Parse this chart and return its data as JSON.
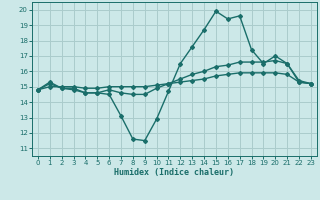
{
  "xlabel": "Humidex (Indice chaleur)",
  "xlim": [
    -0.5,
    23.5
  ],
  "ylim": [
    10.5,
    20.5
  ],
  "yticks": [
    11,
    12,
    13,
    14,
    15,
    16,
    17,
    18,
    19,
    20
  ],
  "xticks": [
    0,
    1,
    2,
    3,
    4,
    5,
    6,
    7,
    8,
    9,
    10,
    11,
    12,
    13,
    14,
    15,
    16,
    17,
    18,
    19,
    20,
    21,
    22,
    23
  ],
  "bg_color": "#cce8e8",
  "grid_color": "#aacccc",
  "line_color": "#1a6e6a",
  "line1_x": [
    0,
    1,
    2,
    3,
    4,
    5,
    6,
    7,
    8,
    9,
    10,
    11,
    12,
    13,
    14,
    15,
    16,
    17,
    18,
    19,
    20,
    21,
    22,
    23
  ],
  "line1_y": [
    14.8,
    15.3,
    14.9,
    14.9,
    14.6,
    14.6,
    14.5,
    13.1,
    11.6,
    11.5,
    12.9,
    14.7,
    16.5,
    17.6,
    18.7,
    19.9,
    19.4,
    19.6,
    17.4,
    16.5,
    17.0,
    16.5,
    15.4,
    15.2
  ],
  "line2_x": [
    0,
    1,
    2,
    3,
    4,
    5,
    6,
    7,
    8,
    9,
    10,
    11,
    12,
    13,
    14,
    15,
    16,
    17,
    18,
    19,
    20,
    21,
    22,
    23
  ],
  "line2_y": [
    14.8,
    15.2,
    14.9,
    14.8,
    14.6,
    14.6,
    14.8,
    14.6,
    14.5,
    14.5,
    14.9,
    15.2,
    15.5,
    15.8,
    16.0,
    16.3,
    16.4,
    16.6,
    16.6,
    16.6,
    16.7,
    16.5,
    15.3,
    15.2
  ],
  "line3_x": [
    0,
    1,
    2,
    3,
    4,
    5,
    6,
    7,
    8,
    9,
    10,
    11,
    12,
    13,
    14,
    15,
    16,
    17,
    18,
    19,
    20,
    21,
    22,
    23
  ],
  "line3_y": [
    14.8,
    15.0,
    15.0,
    15.0,
    14.9,
    14.9,
    15.0,
    15.0,
    15.0,
    15.0,
    15.1,
    15.2,
    15.3,
    15.4,
    15.5,
    15.7,
    15.8,
    15.9,
    15.9,
    15.9,
    15.9,
    15.8,
    15.3,
    15.2
  ]
}
